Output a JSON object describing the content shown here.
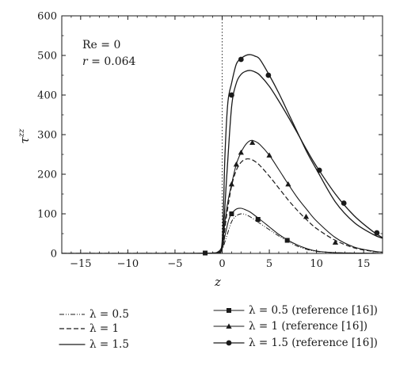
{
  "chart_data": {
    "type": "line",
    "xlabel": "z",
    "ylabel": "τ^zz",
    "xlim": [
      -17,
      17
    ],
    "ylim": [
      0,
      600
    ],
    "xticks": [
      -15,
      -10,
      -5,
      0,
      5,
      10,
      15
    ],
    "yticks": [
      0,
      100,
      200,
      300,
      400,
      500,
      600
    ],
    "xtick_labels": [
      "−15",
      "−10",
      "−5",
      "0",
      "5",
      "10",
      "15"
    ],
    "ytick_labels": [
      "0",
      "100",
      "200",
      "300",
      "400",
      "500",
      "600"
    ],
    "vline_x": 0,
    "annotations": {
      "line1": "Re = 0",
      "line2_var": "r",
      "line2_rest": " = 0.064"
    },
    "series": [
      {
        "name": "λ = 0.5",
        "style": "dashdotdot",
        "x": [
          -17,
          -4,
          -2,
          -1,
          -0.5,
          0,
          0.5,
          1,
          1.5,
          2,
          2.5,
          3,
          3.5,
          4,
          5,
          6,
          7,
          8,
          9,
          10,
          12,
          14,
          17
        ],
        "y": [
          0,
          0,
          0.5,
          1,
          2,
          10,
          45,
          80,
          95,
          100,
          98,
          92,
          84,
          76,
          60,
          44,
          30,
          18,
          10,
          5,
          2,
          1,
          0
        ]
      },
      {
        "name": "λ = 1",
        "style": "dashed",
        "x": [
          -17,
          -4,
          -2,
          -1,
          -0.5,
          0,
          0.5,
          1,
          1.5,
          2,
          2.5,
          3,
          3.5,
          4,
          5,
          6,
          7,
          8,
          9,
          10,
          12,
          14,
          16,
          17
        ],
        "y": [
          0,
          0,
          0.5,
          1,
          3,
          15,
          100,
          170,
          210,
          230,
          238,
          238,
          232,
          222,
          195,
          165,
          135,
          108,
          84,
          63,
          33,
          14,
          5,
          3
        ]
      },
      {
        "name": "λ = 1.5",
        "style": "solid",
        "x": [
          -17,
          -4,
          -2,
          -1,
          -0.5,
          0,
          0.5,
          1,
          1.5,
          2,
          2.5,
          3,
          3.5,
          4,
          5,
          6,
          7,
          8,
          9,
          10,
          12,
          14,
          16,
          17
        ],
        "y": [
          0,
          0,
          0.5,
          1,
          3,
          20,
          200,
          370,
          430,
          452,
          460,
          462,
          458,
          450,
          422,
          385,
          345,
          303,
          260,
          220,
          150,
          95,
          55,
          40
        ]
      },
      {
        "name": "λ = 0.5 (reference [16])",
        "style": "solid-thin",
        "marker": "square",
        "x": [
          -17,
          -4,
          -2,
          -1,
          -0.5,
          0,
          0.3,
          0.7,
          1,
          1.5,
          2,
          2.5,
          3,
          4,
          5,
          6,
          7,
          8,
          9,
          10,
          12,
          14,
          17
        ],
        "y": [
          0,
          0,
          0.5,
          1,
          2,
          12,
          45,
          85,
          100,
          112,
          114,
          110,
          104,
          86,
          67,
          48,
          33,
          21,
          12,
          6,
          2,
          1,
          0
        ],
        "marker_x": [
          -1.8,
          1,
          3.8,
          6.9
        ],
        "marker_y": [
          1,
          100,
          86,
          33
        ]
      },
      {
        "name": "λ = 1 (reference [16])",
        "style": "solid-thin",
        "marker": "triangle",
        "x": [
          -17,
          -4,
          -2,
          -1,
          -0.5,
          0,
          0.3,
          0.6,
          1,
          1.5,
          2,
          2.5,
          3,
          3.5,
          4,
          5,
          6,
          7,
          8,
          9,
          10,
          12,
          14,
          16,
          17
        ],
        "y": [
          0,
          0,
          0.5,
          1,
          3,
          20,
          80,
          130,
          175,
          225,
          255,
          275,
          285,
          283,
          275,
          248,
          212,
          175,
          140,
          110,
          82,
          40,
          16,
          6,
          3
        ],
        "marker_x": [
          1,
          1.5,
          2,
          3.2,
          5,
          7,
          8.9,
          12
        ],
        "marker_y": [
          175,
          225,
          255,
          280,
          248,
          175,
          93,
          28
        ]
      },
      {
        "name": "λ = 1.5 (reference [16])",
        "style": "solid",
        "marker": "circle",
        "x": [
          -17,
          -4,
          -2,
          -1,
          -0.5,
          0,
          0.3,
          0.6,
          1,
          1.5,
          2,
          2.5,
          3,
          3.5,
          4,
          5,
          6,
          7,
          8,
          9,
          10,
          12,
          14,
          16,
          17
        ],
        "y": [
          0,
          0,
          0.5,
          1,
          3,
          30,
          250,
          380,
          430,
          478,
          492,
          500,
          502,
          498,
          490,
          450,
          405,
          355,
          305,
          255,
          212,
          130,
          78,
          48,
          38
        ],
        "marker_x": [
          1,
          2,
          4.9,
          10.3,
          12.9,
          16.4
        ],
        "marker_y": [
          400,
          490,
          450,
          210,
          127,
          52
        ]
      }
    ]
  }
}
